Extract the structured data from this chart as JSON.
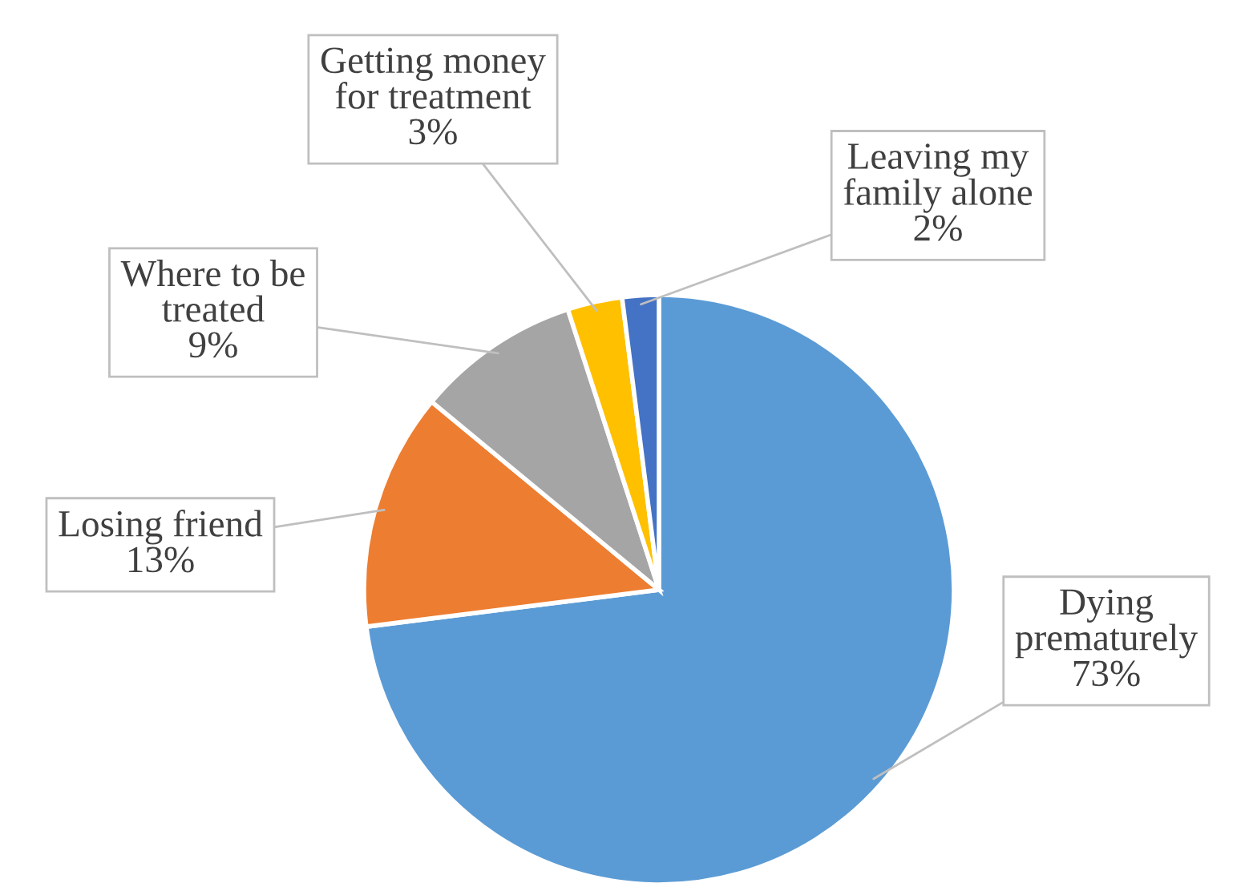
{
  "chart_data": {
    "type": "pie",
    "categories": [
      "Dying prematurely",
      "Losing friend",
      "Where to be treated",
      "Getting money for treatment",
      "Leaving my family alone"
    ],
    "values": [
      73,
      13,
      9,
      3,
      2
    ],
    "value_labels": [
      "73%",
      "13%",
      "9%",
      "3%",
      "2%"
    ],
    "colors": [
      "#5b9bd5",
      "#ed7d31",
      "#a5a5a5",
      "#ffc000",
      "#4472c4"
    ],
    "legend": false
  }
}
